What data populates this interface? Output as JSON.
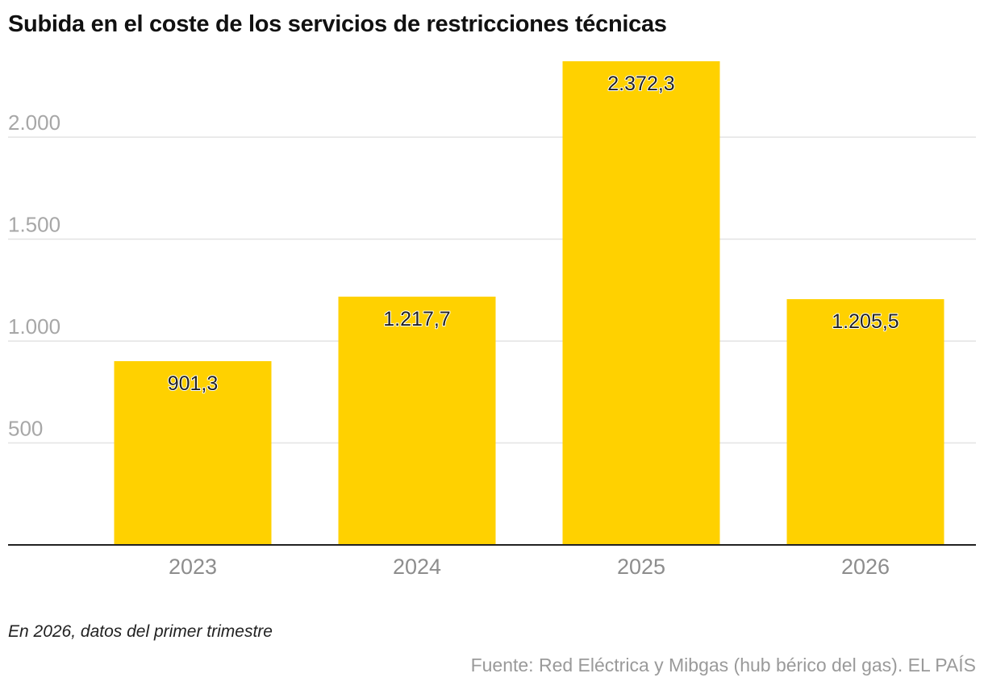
{
  "chart_data": {
    "type": "bar",
    "title": "Subida en el coste de los servicios de restricciones técnicas",
    "categories": [
      "2023",
      "2024",
      "2025",
      "2026"
    ],
    "values": [
      901.3,
      1217.7,
      2372.3,
      1205.5
    ],
    "value_labels": [
      "901,3",
      "1.217,7",
      "2.372,3",
      "1.205,5"
    ],
    "yticks": [
      500,
      1000,
      1500,
      2000
    ],
    "ytick_labels": [
      "500",
      "1.000",
      "1.500",
      "2.000"
    ],
    "ylim": [
      0,
      2372.3
    ],
    "xlabel": "",
    "ylabel": "",
    "grid": true,
    "bar_color": "#FFD100"
  },
  "note": "En 2026, datos del primer trimestre",
  "source": "Fuente: Red Eléctrica y Mibgas (hub bérico del gas). EL PAÍS"
}
